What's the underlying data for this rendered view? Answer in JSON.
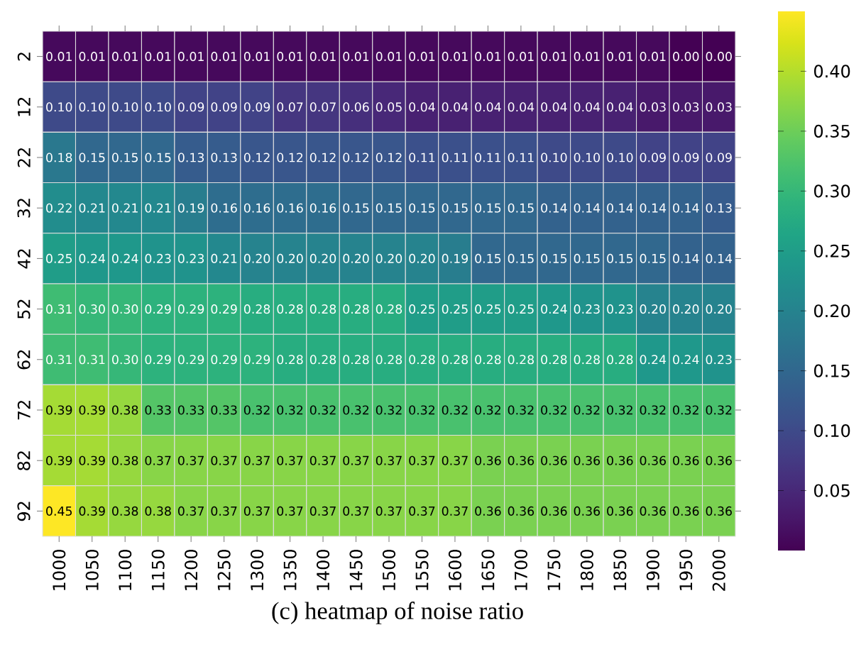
{
  "chart_data": {
    "type": "heatmap",
    "categories": [
      "1000",
      "1050",
      "1100",
      "1150",
      "1200",
      "1250",
      "1300",
      "1350",
      "1400",
      "1450",
      "1500",
      "1550",
      "1600",
      "1650",
      "1700",
      "1750",
      "1800",
      "1850",
      "1900",
      "1950",
      "2000"
    ],
    "y_categories": [
      "2",
      "12",
      "22",
      "32",
      "42",
      "52",
      "62",
      "72",
      "82",
      "92"
    ],
    "cells": [
      [
        0.01,
        0.01,
        0.01,
        0.01,
        0.01,
        0.01,
        0.01,
        0.01,
        0.01,
        0.01,
        0.01,
        0.01,
        0.01,
        0.01,
        0.01,
        0.01,
        0.01,
        0.01,
        0.01,
        0.0,
        0.0
      ],
      [
        0.1,
        0.1,
        0.1,
        0.1,
        0.09,
        0.09,
        0.09,
        0.07,
        0.07,
        0.06,
        0.05,
        0.04,
        0.04,
        0.04,
        0.04,
        0.04,
        0.04,
        0.04,
        0.03,
        0.03,
        0.03
      ],
      [
        0.18,
        0.15,
        0.15,
        0.15,
        0.13,
        0.13,
        0.12,
        0.12,
        0.12,
        0.12,
        0.12,
        0.11,
        0.11,
        0.11,
        0.11,
        0.1,
        0.1,
        0.1,
        0.09,
        0.09,
        0.09
      ],
      [
        0.22,
        0.21,
        0.21,
        0.21,
        0.19,
        0.16,
        0.16,
        0.16,
        0.16,
        0.15,
        0.15,
        0.15,
        0.15,
        0.15,
        0.15,
        0.14,
        0.14,
        0.14,
        0.14,
        0.14,
        0.13
      ],
      [
        0.25,
        0.24,
        0.24,
        0.23,
        0.23,
        0.21,
        0.2,
        0.2,
        0.2,
        0.2,
        0.2,
        0.2,
        0.19,
        0.15,
        0.15,
        0.15,
        0.15,
        0.15,
        0.15,
        0.14,
        0.14
      ],
      [
        0.31,
        0.3,
        0.3,
        0.29,
        0.29,
        0.29,
        0.28,
        0.28,
        0.28,
        0.28,
        0.28,
        0.25,
        0.25,
        0.25,
        0.25,
        0.24,
        0.23,
        0.23,
        0.2,
        0.2,
        0.2
      ],
      [
        0.31,
        0.31,
        0.3,
        0.29,
        0.29,
        0.29,
        0.29,
        0.28,
        0.28,
        0.28,
        0.28,
        0.28,
        0.28,
        0.28,
        0.28,
        0.28,
        0.28,
        0.28,
        0.24,
        0.24,
        0.23
      ],
      [
        0.39,
        0.39,
        0.38,
        0.33,
        0.33,
        0.33,
        0.32,
        0.32,
        0.32,
        0.32,
        0.32,
        0.32,
        0.32,
        0.32,
        0.32,
        0.32,
        0.32,
        0.32,
        0.32,
        0.32,
        0.32
      ],
      [
        0.39,
        0.39,
        0.38,
        0.37,
        0.37,
        0.37,
        0.37,
        0.37,
        0.37,
        0.37,
        0.37,
        0.37,
        0.37,
        0.36,
        0.36,
        0.36,
        0.36,
        0.36,
        0.36,
        0.36,
        0.36
      ],
      [
        0.45,
        0.39,
        0.38,
        0.38,
        0.37,
        0.37,
        0.37,
        0.37,
        0.37,
        0.37,
        0.37,
        0.37,
        0.37,
        0.36,
        0.36,
        0.36,
        0.36,
        0.36,
        0.36,
        0.36,
        0.36
      ]
    ],
    "cell_labels": [
      [
        "0.01",
        "0.01",
        "0.01",
        "0.01",
        "0.01",
        "0.01",
        "0.01",
        "0.01",
        "0.01",
        "0.01",
        "0.01",
        "0.01",
        "0.01",
        "0.01",
        "0.01",
        "0.01",
        "0.01",
        "0.01",
        "0.01",
        "0.00",
        "0.00"
      ],
      [
        "0.10",
        "0.10",
        "0.10",
        "0.10",
        "0.09",
        "0.09",
        "0.09",
        "0.07",
        "0.07",
        "0.06",
        "0.05",
        "0.04",
        "0.04",
        "0.04",
        "0.04",
        "0.04",
        "0.04",
        "0.04",
        "0.03",
        "0.03",
        "0.03"
      ],
      [
        "0.18",
        "0.15",
        "0.15",
        "0.15",
        "0.13",
        "0.13",
        "0.12",
        "0.12",
        "0.12",
        "0.12",
        "0.12",
        "0.11",
        "0.11",
        "0.11",
        "0.11",
        "0.10",
        "0.10",
        "0.10",
        "0.09",
        "0.09",
        "0.09"
      ],
      [
        "0.22",
        "0.21",
        "0.21",
        "0.21",
        "0.19",
        "0.16",
        "0.16",
        "0.16",
        "0.16",
        "0.15",
        "0.15",
        "0.15",
        "0.15",
        "0.15",
        "0.15",
        "0.14",
        "0.14",
        "0.14",
        "0.14",
        "0.14",
        "0.13"
      ],
      [
        "0.25",
        "0.24",
        "0.24",
        "0.23",
        "0.23",
        "0.21",
        "0.20",
        "0.20",
        "0.20",
        "0.20",
        "0.20",
        "0.20",
        "0.19",
        "0.15",
        "0.15",
        "0.15",
        "0.15",
        "0.15",
        "0.15",
        "0.14",
        "0.14"
      ],
      [
        "0.31",
        "0.30",
        "0.30",
        "0.29",
        "0.29",
        "0.29",
        "0.28",
        "0.28",
        "0.28",
        "0.28",
        "0.28",
        "0.25",
        "0.25",
        "0.25",
        "0.25",
        "0.24",
        "0.23",
        "0.23",
        "0.20",
        "0.20",
        "0.20"
      ],
      [
        "0.31",
        "0.31",
        "0.30",
        "0.29",
        "0.29",
        "0.29",
        "0.29",
        "0.28",
        "0.28",
        "0.28",
        "0.28",
        "0.28",
        "0.28",
        "0.28",
        "0.28",
        "0.28",
        "0.28",
        "0.28",
        "0.24",
        "0.24",
        "0.23"
      ],
      [
        "0.39",
        "0.39",
        "0.38",
        "0.33",
        "0.33",
        "0.33",
        "0.32",
        "0.32",
        "0.32",
        "0.32",
        "0.32",
        "0.32",
        "0.32",
        "0.32",
        "0.32",
        "0.32",
        "0.32",
        "0.32",
        "0.32",
        "0.32",
        "0.32"
      ],
      [
        "0.39",
        "0.39",
        "0.38",
        "0.37",
        "0.37",
        "0.37",
        "0.37",
        "0.37",
        "0.37",
        "0.37",
        "0.37",
        "0.37",
        "0.37",
        "0.36",
        "0.36",
        "0.36",
        "0.36",
        "0.36",
        "0.36",
        "0.36",
        "0.36"
      ],
      [
        "0.45",
        "0.39",
        "0.38",
        "0.38",
        "0.37",
        "0.37",
        "0.37",
        "0.37",
        "0.37",
        "0.37",
        "0.37",
        "0.37",
        "0.37",
        "0.36",
        "0.36",
        "0.36",
        "0.36",
        "0.36",
        "0.36",
        "0.36",
        "0.36"
      ]
    ],
    "clim": [
      0,
      0.45
    ],
    "cticks": [
      {
        "value": 0.05,
        "label": "0.05"
      },
      {
        "value": 0.1,
        "label": "0.10"
      },
      {
        "value": 0.15,
        "label": "0.15"
      },
      {
        "value": 0.2,
        "label": "0.20"
      },
      {
        "value": 0.25,
        "label": "0.25"
      },
      {
        "value": 0.3,
        "label": "0.30"
      },
      {
        "value": 0.35,
        "label": "0.35"
      },
      {
        "value": 0.4,
        "label": "0.40"
      }
    ],
    "annotations": [
      "(c) heatmap of noise ratio"
    ]
  }
}
